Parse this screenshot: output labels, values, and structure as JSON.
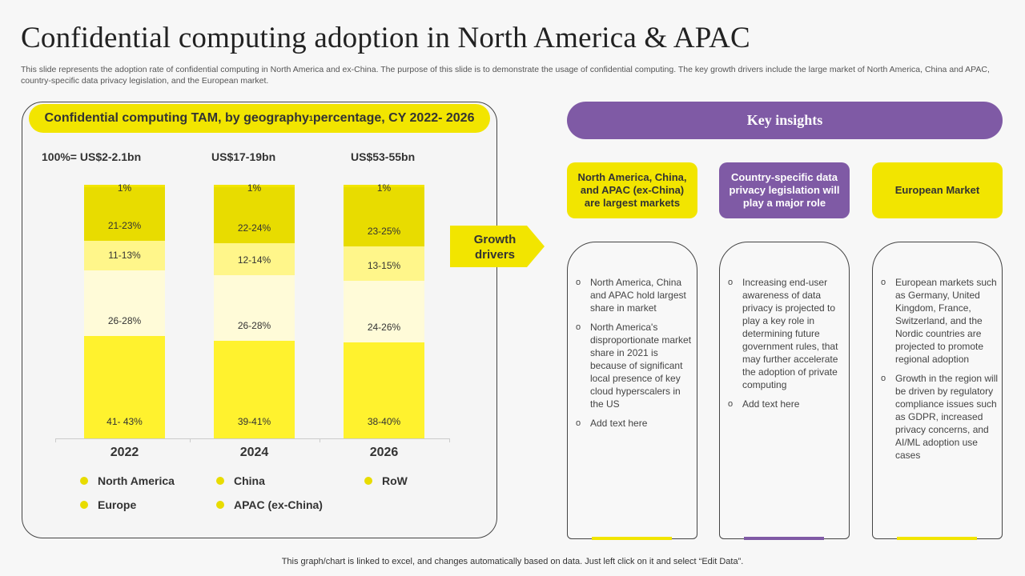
{
  "title": "Confidential computing adoption in North America & APAC",
  "description": "This slide represents the adoption rate of confidential computing in North America and ex-China. The purpose of this slide is to demonstrate the usage of confidential computing. The key growth drivers include the large market of North America, China and APAC,  country-specific data privacy legislation, and the European market.",
  "chart_data": {
    "type": "bar",
    "stacked": true,
    "title": "Confidential computing TAM, by geography",
    "title_superscript": "1",
    "title_suffix": " percentage, CY 2022- 2026",
    "categories": [
      "2022",
      "2024",
      "2026"
    ],
    "totals": [
      "100%= US$2-2.1bn",
      "US$17-19bn",
      "US$53-55bn"
    ],
    "series": [
      {
        "name": "North America",
        "labels": [
          "41- 43%",
          "39-41%",
          "38-40%"
        ],
        "values": [
          42,
          40,
          39
        ],
        "color": "#fff22e"
      },
      {
        "name": "Europe",
        "labels": [
          "26-28%",
          "26-28%",
          "24-26%"
        ],
        "values": [
          27,
          27,
          25
        ],
        "color": "#fffbd8"
      },
      {
        "name": "China",
        "labels": [
          "11-13%",
          "12-14%",
          "13-15%"
        ],
        "values": [
          12,
          13,
          14
        ],
        "color": "#fff68a"
      },
      {
        "name": "APAC (ex-China)",
        "labels": [
          "21-23%",
          "22-24%",
          "23-25%"
        ],
        "values": [
          22,
          23,
          24
        ],
        "color": "#e8dc00"
      },
      {
        "name": "RoW",
        "labels": [
          "1%",
          "1%",
          "1%"
        ],
        "values": [
          1,
          1,
          1
        ],
        "color": "#f2e500"
      }
    ],
    "legend": [
      "North America",
      "China",
      "RoW",
      "Europe",
      "APAC (ex-China)"
    ],
    "legend_placement": "bottom",
    "grid": false
  },
  "growth_drivers": "Growth drivers",
  "insights": {
    "title": "Key insights",
    "columns": [
      {
        "header": "North America, China, and APAC (ex-China) are largest markets",
        "color": "#f2e500",
        "bullets": [
          "North America, China and APAC hold largest share in market",
          "North America's disproportionate market share in 2021 is because of significant local presence of key cloud hyperscalers in the US",
          "Add text here"
        ]
      },
      {
        "header": "Country-specific data privacy legislation will play a major role",
        "color": "#7f5aa5",
        "bullets": [
          "Increasing end-user awareness of data privacy is projected to play a key role in determining future government  rules, that may further accelerate the adoption of private computing",
          "Add text here"
        ]
      },
      {
        "header": "European Market",
        "color": "#f2e500",
        "bullets": [
          "European markets such as Germany, United Kingdom, France, Switzerland, and the Nordic countries are projected to promote regional adoption",
          "Growth in the region will be driven by regulatory compliance issues such as GDPR, increased privacy concerns, and AI/ML adoption use cases"
        ]
      }
    ]
  },
  "footer": "This graph/chart is linked to excel,  and changes automatically based on data. Just left click on it and select “Edit Data”."
}
